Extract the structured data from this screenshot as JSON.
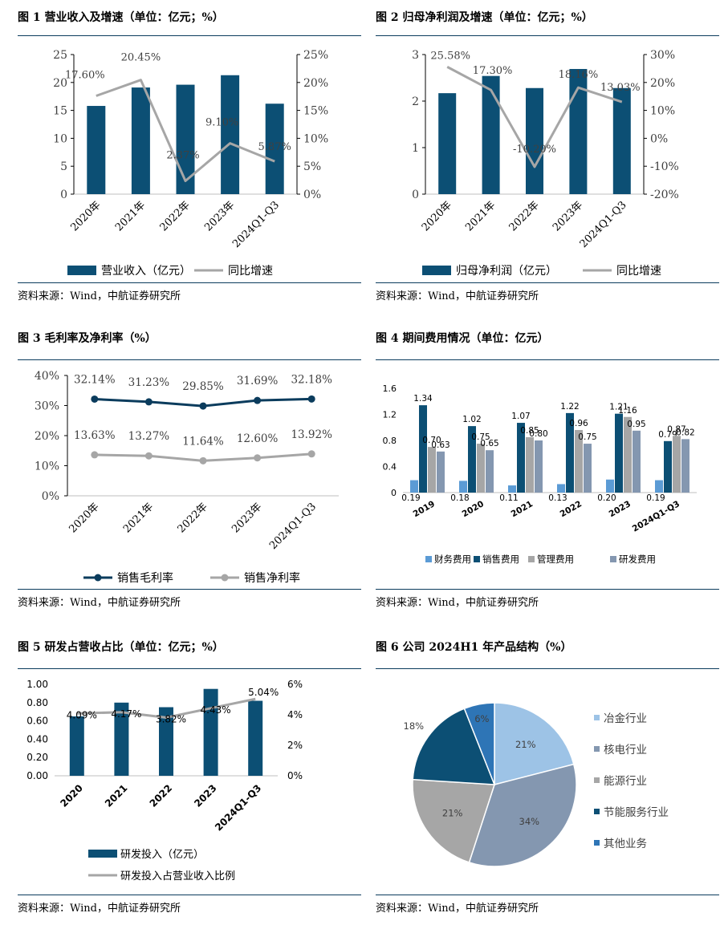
{
  "colors": {
    "navy": "#0c4f74",
    "dark_navy": "#0b3c5d",
    "gray": "#a6a6a6",
    "light_blue": "#5b9bd5",
    "steel": "#8497b0",
    "pie": [
      "#9dc3e6",
      "#8497b0",
      "#a6a6a6",
      "#0c4f74",
      "#2e75b6"
    ]
  },
  "source_text": "资料来源：Wind，中航证券研究所",
  "charts": [
    {
      "title": "图 1 营业收入及增速（单位：亿元；%）",
      "chart_data": {
        "type": "bar+line",
        "categories": [
          "2020年",
          "2021年",
          "2022年",
          "2023年",
          "2024Q1-Q3"
        ],
        "series": [
          {
            "name": "营业收入（亿元）",
            "kind": "bar",
            "axis": "left",
            "values": [
              15.8,
              19.1,
              19.6,
              21.3,
              16.2
            ]
          },
          {
            "name": "同比增速",
            "kind": "line",
            "axis": "right",
            "values": [
              17.6,
              20.45,
              2.37,
              9.1,
              5.87
            ],
            "labels": [
              "17.60%",
              "20.45%",
              "2.37%",
              "9.10%",
              "5.87%"
            ]
          }
        ],
        "y_left": {
          "min": 0,
          "max": 25,
          "ticks": [
            "0",
            "5",
            "10",
            "15",
            "20",
            "25"
          ]
        },
        "y_right": {
          "min": 0,
          "max": 25,
          "ticks": [
            "0%",
            "5%",
            "10%",
            "15%",
            "20%",
            "25%"
          ]
        }
      }
    },
    {
      "title": "图 2 归母净利润及增速（单位：亿元；%）",
      "chart_data": {
        "type": "bar+line",
        "categories": [
          "2020年",
          "2021年",
          "2022年",
          "2023年",
          "2024Q1-Q3"
        ],
        "series": [
          {
            "name": "归母净利润（亿元）",
            "kind": "bar",
            "axis": "left",
            "values": [
              2.17,
              2.54,
              2.28,
              2.69,
              2.28
            ]
          },
          {
            "name": "同比增速",
            "kind": "line",
            "axis": "right",
            "values": [
              25.58,
              17.3,
              -10.2,
              18.16,
              13.03
            ],
            "labels": [
              "25.58%",
              "17.30%",
              "-10.20%",
              "18.16%",
              "13.03%"
            ]
          }
        ],
        "y_left": {
          "min": 0,
          "max": 3,
          "ticks": [
            "0",
            "1",
            "2",
            "3"
          ]
        },
        "y_right": {
          "min": -20,
          "max": 30,
          "ticks": [
            "-20%",
            "-10%",
            "0%",
            "10%",
            "20%",
            "30%"
          ]
        }
      }
    },
    {
      "title": "图 3 毛利率及净利率（%）",
      "chart_data": {
        "type": "line",
        "categories": [
          "2020年",
          "2021年",
          "2022年",
          "2023年",
          "2024Q1-Q3"
        ],
        "series": [
          {
            "name": "销售毛利率",
            "values": [
              32.14,
              31.23,
              29.85,
              31.69,
              32.18
            ],
            "labels": [
              "32.14%",
              "31.23%",
              "29.85%",
              "31.69%",
              "32.18%"
            ]
          },
          {
            "name": "销售净利率",
            "values": [
              13.63,
              13.27,
              11.64,
              12.6,
              13.92
            ],
            "labels": [
              "13.63%",
              "13.27%",
              "11.64%",
              "12.60%",
              "13.92%"
            ]
          }
        ],
        "y": {
          "min": 0,
          "max": 40,
          "ticks": [
            "0%",
            "10%",
            "20%",
            "30%",
            "40%"
          ]
        }
      }
    },
    {
      "title": "图 4 期间费用情况（单位：亿元）",
      "chart_data": {
        "type": "bar",
        "categories": [
          "2019",
          "2020",
          "2021",
          "2022",
          "2023",
          "2024Q1-Q3"
        ],
        "series": [
          {
            "name": "财务费用",
            "values": [
              0.19,
              0.18,
              0.11,
              0.13,
              0.2,
              0.19
            ],
            "labels": [
              "0.19",
              "0.18",
              "0.11",
              "0.13",
              "0.20",
              "0.19"
            ]
          },
          {
            "name": "销售费用",
            "values": [
              1.34,
              1.02,
              1.07,
              1.22,
              1.21,
              0.79
            ],
            "labels": [
              "1.34",
              "1.02",
              "1.07",
              "1.22",
              "1.21",
              "0.79"
            ]
          },
          {
            "name": "管理费用",
            "values": [
              0.7,
              0.75,
              0.85,
              0.96,
              1.16,
              0.87
            ],
            "labels": [
              "0.70",
              "0.75",
              "0.85",
              "0.96",
              "1.16",
              "0.87"
            ]
          },
          {
            "name": "研发费用",
            "values": [
              0.63,
              0.65,
              0.8,
              0.75,
              0.95,
              0.82
            ],
            "labels": [
              "0.63",
              "0.65",
              "0.80",
              "0.75",
              "0.95",
              "0.82"
            ]
          }
        ],
        "y": {
          "min": 0,
          "max": 1.6,
          "ticks": [
            "0",
            "0.4",
            "0.8",
            "1.2",
            "1.6"
          ]
        }
      }
    },
    {
      "title": "图 5 研发占营收占比（单位：亿元；%）",
      "chart_data": {
        "type": "bar+line",
        "categories": [
          "2020",
          "2021",
          "2022",
          "2023",
          "2024Q1-Q3"
        ],
        "series": [
          {
            "name": "研发投入（亿元）",
            "kind": "bar",
            "axis": "left",
            "values": [
              0.65,
              0.8,
              0.75,
              0.95,
              0.82
            ]
          },
          {
            "name": "研发投入占营业收入比例",
            "kind": "line",
            "axis": "right",
            "values": [
              4.09,
              4.17,
              3.82,
              4.43,
              5.04
            ],
            "labels": [
              "4.09%",
              "4.17%",
              "3.82%",
              "4.43%",
              "5.04%"
            ]
          }
        ],
        "y_left": {
          "min": 0,
          "max": 1.0,
          "ticks": [
            "0.00",
            "0.20",
            "0.40",
            "0.60",
            "0.80",
            "1.00"
          ]
        },
        "y_right": {
          "min": 0,
          "max": 6,
          "ticks": [
            "0%",
            "2%",
            "4%",
            "6%"
          ]
        }
      }
    },
    {
      "title": "图 6 公司 2024H1 年产品结构（%）",
      "chart_data": {
        "type": "pie",
        "slices": [
          {
            "name": "冶金行业",
            "value": 21,
            "label": "21%"
          },
          {
            "name": "核电行业",
            "value": 34,
            "label": "34%"
          },
          {
            "name": "能源行业",
            "value": 21,
            "label": "21%"
          },
          {
            "name": "节能服务行业",
            "value": 18,
            "label": "18%"
          },
          {
            "name": "其他业务",
            "value": 6,
            "label": "6%"
          }
        ]
      }
    }
  ]
}
